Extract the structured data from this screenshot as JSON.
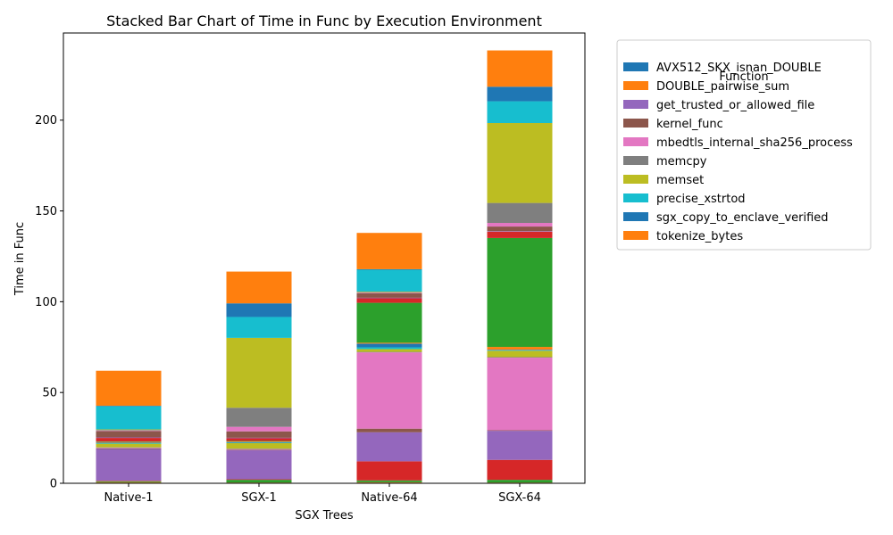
{
  "chart_data": {
    "type": "bar",
    "stacked": true,
    "title": "Stacked Bar Chart of Time in Func by Execution Environment",
    "xlabel": "SGX Trees",
    "ylabel": "Time in Func",
    "categories": [
      "Native-1",
      "SGX-1",
      "Native-64",
      "SGX-64"
    ],
    "ylim": [
      0,
      248
    ],
    "yticks": [
      0,
      50,
      100,
      150,
      200
    ],
    "grid": false,
    "legend": {
      "title": "Function",
      "placement": "outside-right",
      "entries": [
        {
          "label": "AVX512_SKX_isnan_DOUBLE",
          "color": "#1f77b4"
        },
        {
          "label": "DOUBLE_pairwise_sum",
          "color": "#ff7f0e"
        },
        {
          "label": "get_trusted_or_allowed_file",
          "color": "#9467bd"
        },
        {
          "label": "kernel_func",
          "color": "#8c564b"
        },
        {
          "label": "mbedtls_internal_sha256_process",
          "color": "#e377c2"
        },
        {
          "label": "memcpy",
          "color": "#7f7f7f"
        },
        {
          "label": "memset",
          "color": "#bcbd22"
        },
        {
          "label": "precise_xstrtod",
          "color": "#17becf"
        },
        {
          "label": "sgx_copy_to_enclave_verified",
          "color": "#1f77b4"
        },
        {
          "label": "tokenize_bytes",
          "color": "#ff7f0e"
        }
      ]
    },
    "series": [
      {
        "color": "#1f77b4",
        "values": [
          0.3,
          0.2,
          0.3,
          0.2
        ]
      },
      {
        "color": "#ff7f0e",
        "values": [
          0.3,
          0.2,
          0.3,
          0.2
        ]
      },
      {
        "color": "#2ca02c",
        "values": [
          0.5,
          1.5,
          1.0,
          1.5
        ]
      },
      {
        "color": "#d62728",
        "values": [
          0.3,
          0.3,
          10.5,
          11.0
        ]
      },
      {
        "color": "#9467bd",
        "values": [
          17.5,
          16.0,
          16.0,
          16.0
        ]
      },
      {
        "color": "#8c564b",
        "values": [
          0.3,
          0.3,
          2.0,
          0.3
        ]
      },
      {
        "color": "#e377c2",
        "values": [
          0.3,
          0.3,
          42.0,
          40.0
        ]
      },
      {
        "color": "#7f7f7f",
        "values": [
          0.3,
          0.3,
          0.3,
          0.3
        ]
      },
      {
        "color": "#bcbd22",
        "values": [
          2.0,
          3.0,
          1.5,
          3.5
        ]
      },
      {
        "color": "#17becf",
        "values": [
          0.3,
          0.3,
          1.0,
          0.3
        ]
      },
      {
        "color": "#1f77b4",
        "values": [
          0.3,
          0.3,
          2.0,
          0.3
        ]
      },
      {
        "color": "#ff7f0e",
        "values": [
          0.3,
          0.3,
          0.5,
          1.5
        ]
      },
      {
        "color": "#2ca02c",
        "values": [
          0.3,
          0.3,
          22.0,
          60.0
        ]
      },
      {
        "color": "#d62728",
        "values": [
          2.0,
          1.5,
          2.5,
          3.5
        ]
      },
      {
        "color": "#9467bd",
        "values": [
          0.3,
          0.3,
          0.3,
          0.3
        ]
      },
      {
        "color": "#8c564b",
        "values": [
          3.5,
          3.5,
          2.5,
          2.5
        ]
      },
      {
        "color": "#e377c2",
        "values": [
          0.3,
          2.5,
          0.3,
          2.0
        ]
      },
      {
        "color": "#7f7f7f",
        "values": [
          0.3,
          10.5,
          0.3,
          11.0
        ]
      },
      {
        "color": "#bcbd22",
        "values": [
          0.3,
          38.5,
          0.3,
          44.0
        ]
      },
      {
        "color": "#17becf",
        "values": [
          12.7,
          11.5,
          12.0,
          12.0
        ]
      },
      {
        "color": "#1f77b4",
        "values": [
          0.3,
          7.5,
          0.3,
          8.0
        ]
      },
      {
        "color": "#ff7f0e",
        "values": [
          19.3,
          17.5,
          20.0,
          20.0
        ]
      }
    ]
  }
}
